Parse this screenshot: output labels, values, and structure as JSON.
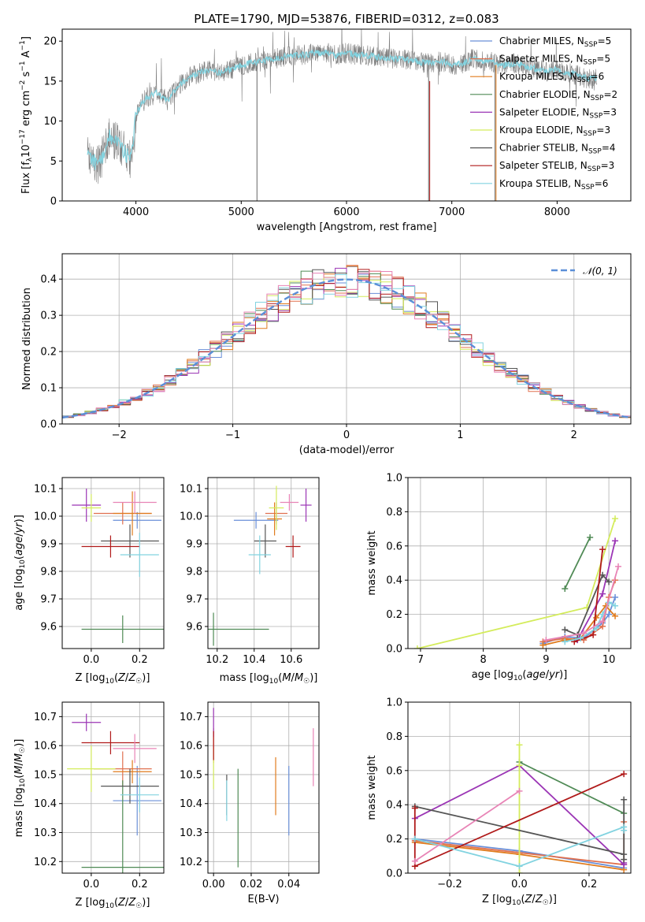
{
  "colors": {
    "chabrier_miles": "#6a8fd8",
    "salpeter_miles": "#e0704f",
    "kroupa_miles": "#e07c1e",
    "chabrier_elodie": "#4f8a55",
    "salpeter_elodie": "#9b35b5",
    "kroupa_elodie": "#d4ec5c",
    "chabrier_stelib": "#555555",
    "salpeter_stelib": "#b01a1a",
    "kroupa_stelib": "#82d3e0",
    "spectrum": "#808080",
    "normal": "#5b8fd8",
    "extra_pink": "#e884b6"
  },
  "chart_data": [
    {
      "id": "spectrum",
      "type": "line",
      "title": "PLATE=1790, MJD=53876, FIBERID=0312, z=0.083",
      "xlabel": "wavelength [Angstrom, rest frame]",
      "ylabel": "Flux [f_λ10^-17 erg cm^-2 s^-1 A^-1]",
      "xlim": [
        3300,
        8700
      ],
      "ylim": [
        0,
        21.5
      ],
      "xticks": [
        4000,
        5000,
        6000,
        7000,
        8000
      ],
      "yticks": [
        0,
        5,
        10,
        15,
        20
      ],
      "grid": false,
      "legend_position": "top-right",
      "legend": [
        "Chabrier MILES, N_SSP=5",
        "Salpeter MILES, N_SSP=5",
        "Kroupa MILES, N_SSP=6",
        "Chabrier ELODIE, N_SSP=2",
        "Salpeter ELODIE, N_SSP=3",
        "Kroupa ELODIE, N_SSP=3",
        "Chabrier STELIB, N_SSP=4",
        "Salpeter STELIB, N_SSP=3",
        "Kroupa STELIB, N_SSP=6"
      ],
      "continuum": [
        [
          3550,
          5.5
        ],
        [
          3650,
          4.5
        ],
        [
          3750,
          8
        ],
        [
          3850,
          7
        ],
        [
          3950,
          5
        ],
        [
          4000,
          11
        ],
        [
          4100,
          13
        ],
        [
          4200,
          13.5
        ],
        [
          4300,
          12.5
        ],
        [
          4400,
          14.5
        ],
        [
          4500,
          15.5
        ],
        [
          4600,
          16
        ],
        [
          4700,
          16.5
        ],
        [
          4800,
          16
        ],
        [
          4900,
          16.5
        ],
        [
          5000,
          17
        ],
        [
          5100,
          17.3
        ],
        [
          5200,
          17.5
        ],
        [
          5300,
          17.8
        ],
        [
          5400,
          18
        ],
        [
          5500,
          18.2
        ],
        [
          5600,
          18.3
        ],
        [
          5700,
          18.5
        ],
        [
          5800,
          18.6
        ],
        [
          5900,
          18.2
        ],
        [
          6000,
          18.5
        ],
        [
          6100,
          18.3
        ],
        [
          6200,
          18.2
        ],
        [
          6300,
          18
        ],
        [
          6400,
          17.8
        ],
        [
          6500,
          17.8
        ],
        [
          6600,
          17.6
        ],
        [
          6700,
          17.4
        ],
        [
          6800,
          17.2
        ],
        [
          6900,
          17.5
        ],
        [
          7000,
          17
        ],
        [
          7100,
          17.2
        ],
        [
          7200,
          17.8
        ],
        [
          7300,
          17.5
        ],
        [
          7400,
          17.3
        ],
        [
          7500,
          17
        ],
        [
          7600,
          17.2
        ],
        [
          7700,
          16.8
        ],
        [
          7800,
          16.5
        ],
        [
          7900,
          16.2
        ],
        [
          8000,
          16.5
        ],
        [
          8100,
          16
        ],
        [
          8200,
          15.7
        ],
        [
          8300,
          15.3
        ]
      ],
      "absorption_features": [
        [
          5150,
          0
        ],
        [
          6780,
          0
        ],
        [
          7410,
          0
        ]
      ]
    },
    {
      "id": "residuals",
      "type": "histogram",
      "xlabel": "(data-model)/error",
      "ylabel": "Normed distribution",
      "xlim": [
        -2.5,
        2.5
      ],
      "ylim": [
        0,
        0.47
      ],
      "xticks": [
        -2,
        -1,
        0,
        1,
        2
      ],
      "yticks": [
        0.0,
        0.1,
        0.2,
        0.3,
        0.4
      ],
      "grid": true,
      "legend_position": "top-right",
      "legend": [
        "𝒩(0, 1)"
      ],
      "bin_width": 0.1
    },
    {
      "id": "age_vs_Z",
      "type": "errorbar",
      "xlabel": "Z [log10(Z/Z☉)]",
      "ylabel": "age  [log10(age/yr)]",
      "xlim": [
        -0.12,
        0.3
      ],
      "ylim": [
        9.52,
        10.14
      ],
      "xticks": [
        0.0,
        0.2
      ],
      "yticks": [
        9.6,
        9.7,
        9.8,
        9.9,
        10.0,
        10.1
      ],
      "grid": true,
      "points": [
        {
          "series": "chabrier_miles",
          "x": 0.19,
          "xerr": 0.1,
          "y": 9.985,
          "yerr": 0.03
        },
        {
          "series": "salpeter_miles",
          "x": 0.13,
          "xerr": 0.12,
          "y": 10.01,
          "yerr": 0.04
        },
        {
          "series": "kroupa_miles",
          "x": 0.17,
          "xerr": 0.08,
          "y": 10.01,
          "yerr": 0.08
        },
        {
          "series": "chabrier_elodie",
          "x": 0.13,
          "xerr": 0.17,
          "y": 9.59,
          "yerr": 0.05
        },
        {
          "series": "salpeter_elodie",
          "x": -0.02,
          "xerr": 0.06,
          "y": 10.04,
          "yerr": 0.06
        },
        {
          "series": "kroupa_elodie",
          "x": 0.0,
          "xerr": 0.04,
          "y": 10.03,
          "yerr": 0.05
        },
        {
          "series": "chabrier_stelib",
          "x": 0.16,
          "xerr": 0.12,
          "y": 9.91,
          "yerr": 0.06
        },
        {
          "series": "salpeter_stelib",
          "x": 0.08,
          "xerr": 0.12,
          "y": 9.89,
          "yerr": 0.04
        },
        {
          "series": "kroupa_stelib",
          "x": 0.2,
          "xerr": 0.08,
          "y": 9.86,
          "yerr": 0.08
        },
        {
          "series": "extra_pink",
          "x": 0.18,
          "xerr": 0.09,
          "y": 10.05,
          "yerr": 0.04
        }
      ]
    },
    {
      "id": "age_vs_mass",
      "type": "errorbar",
      "xlabel": "mass [log10(M/M☉)]",
      "ylabel": "",
      "xlim": [
        10.15,
        10.75
      ],
      "ylim": [
        9.52,
        10.14
      ],
      "xticks": [
        10.2,
        10.4,
        10.6
      ],
      "yticks": [
        9.6,
        9.7,
        9.8,
        9.9,
        10.0,
        10.1
      ],
      "grid": true,
      "points": [
        {
          "series": "chabrier_miles",
          "x": 10.41,
          "xerr": 0.12,
          "y": 9.985,
          "yerr": 0.03
        },
        {
          "series": "salpeter_miles",
          "x": 10.52,
          "xerr": 0.06,
          "y": 10.01,
          "yerr": 0.04
        },
        {
          "series": "kroupa_miles",
          "x": 10.51,
          "xerr": 0.04,
          "y": 9.99,
          "yerr": 0.06
        },
        {
          "series": "chabrier_elodie",
          "x": 10.18,
          "xerr": 0.3,
          "y": 9.59,
          "yerr": 0.06
        },
        {
          "series": "salpeter_elodie",
          "x": 10.68,
          "xerr": 0.03,
          "y": 10.04,
          "yerr": 0.06
        },
        {
          "series": "kroupa_elodie",
          "x": 10.52,
          "xerr": 0.04,
          "y": 10.03,
          "yerr": 0.08
        },
        {
          "series": "chabrier_stelib",
          "x": 10.46,
          "xerr": 0.06,
          "y": 9.91,
          "yerr": 0.06
        },
        {
          "series": "salpeter_stelib",
          "x": 10.61,
          "xerr": 0.04,
          "y": 9.89,
          "yerr": 0.04
        },
        {
          "series": "kroupa_stelib",
          "x": 10.43,
          "xerr": 0.06,
          "y": 9.86,
          "yerr": 0.07
        },
        {
          "series": "extra_pink",
          "x": 10.59,
          "xerr": 0.05,
          "y": 10.05,
          "yerr": 0.03
        }
      ]
    },
    {
      "id": "mass_weight_vs_age",
      "type": "line",
      "xlabel": "age  [log10(age/yr)]",
      "ylabel": "mass weight",
      "xlim": [
        6.8,
        10.35
      ],
      "ylim": [
        0.0,
        1.0
      ],
      "xticks": [
        7,
        8,
        9,
        10
      ],
      "yticks": [
        0.0,
        0.2,
        0.4,
        0.6,
        0.8,
        1.0
      ],
      "grid": true,
      "series": [
        {
          "key": "chabrier_miles",
          "x": [
            8.95,
            9.3,
            9.6,
            9.9,
            10.0,
            10.1
          ],
          "y": [
            0.03,
            0.07,
            0.06,
            0.15,
            0.2,
            0.3
          ]
        },
        {
          "key": "salpeter_miles",
          "x": [
            8.95,
            9.3,
            9.6,
            9.9,
            10.0,
            10.1
          ],
          "y": [
            0.04,
            0.06,
            0.05,
            0.13,
            0.3,
            0.4
          ]
        },
        {
          "key": "kroupa_miles",
          "x": [
            8.95,
            9.3,
            9.55,
            9.8,
            9.95,
            10.1
          ],
          "y": [
            0.02,
            0.05,
            0.06,
            0.18,
            0.25,
            0.19
          ]
        },
        {
          "key": "chabrier_elodie",
          "x": [
            9.3,
            9.7
          ],
          "y": [
            0.35,
            0.65
          ]
        },
        {
          "key": "salpeter_elodie",
          "x": [
            9.5,
            9.9,
            10.1
          ],
          "y": [
            0.05,
            0.32,
            0.63
          ]
        },
        {
          "key": "kroupa_elodie",
          "x": [
            6.95,
            9.65,
            10.1
          ],
          "y": [
            0.0,
            0.24,
            0.76
          ]
        },
        {
          "key": "chabrier_stelib",
          "x": [
            9.3,
            9.5,
            9.9,
            10.0
          ],
          "y": [
            0.11,
            0.08,
            0.43,
            0.39
          ]
        },
        {
          "key": "salpeter_stelib",
          "x": [
            9.45,
            9.75,
            9.9
          ],
          "y": [
            0.04,
            0.08,
            0.58
          ]
        },
        {
          "key": "kroupa_stelib",
          "x": [
            9.3,
            9.55,
            9.8,
            9.9,
            10.0,
            10.1
          ],
          "y": [
            0.04,
            0.06,
            0.12,
            0.2,
            0.27,
            0.25
          ]
        },
        {
          "key": "extra_pink",
          "x": [
            9.0,
            9.6,
            9.9,
            10.15
          ],
          "y": [
            0.05,
            0.09,
            0.16,
            0.48
          ]
        }
      ]
    },
    {
      "id": "mass_vs_Z",
      "type": "errorbar",
      "xlabel": "Z [log10(Z/Z☉)]",
      "ylabel": "mass [log10(M/M☉)]",
      "xlim": [
        -0.12,
        0.3
      ],
      "ylim": [
        10.16,
        10.75
      ],
      "xticks": [
        0.0,
        0.2
      ],
      "yticks": [
        10.2,
        10.3,
        10.4,
        10.5,
        10.6,
        10.7
      ],
      "grid": true,
      "points": [
        {
          "series": "chabrier_miles",
          "x": 0.19,
          "xerr": 0.1,
          "y": 10.41,
          "yerr": 0.12
        },
        {
          "series": "salpeter_miles",
          "x": 0.13,
          "xerr": 0.12,
          "y": 10.52,
          "yerr": 0.06
        },
        {
          "series": "kroupa_miles",
          "x": 0.17,
          "xerr": 0.08,
          "y": 10.51,
          "yerr": 0.04
        },
        {
          "series": "chabrier_elodie",
          "x": 0.13,
          "xerr": 0.17,
          "y": 10.18,
          "yerr": 0.3
        },
        {
          "series": "salpeter_elodie",
          "x": -0.02,
          "xerr": 0.06,
          "y": 10.68,
          "yerr": 0.03
        },
        {
          "series": "kroupa_elodie",
          "x": 0.0,
          "xerr": 0.1,
          "y": 10.52,
          "yerr": 0.08
        },
        {
          "series": "chabrier_stelib",
          "x": 0.16,
          "xerr": 0.12,
          "y": 10.46,
          "yerr": 0.06
        },
        {
          "series": "salpeter_stelib",
          "x": 0.08,
          "xerr": 0.12,
          "y": 10.61,
          "yerr": 0.04
        },
        {
          "series": "kroupa_stelib",
          "x": 0.2,
          "xerr": 0.08,
          "y": 10.43,
          "yerr": 0.06
        },
        {
          "series": "extra_pink",
          "x": 0.18,
          "xerr": 0.09,
          "y": 10.59,
          "yerr": 0.05
        }
      ]
    },
    {
      "id": "mass_vs_ebv",
      "type": "errorbar",
      "xlabel": "E(B-V)",
      "ylabel": "",
      "xlim": [
        -0.003,
        0.056
      ],
      "ylim": [
        10.16,
        10.75
      ],
      "xticks": [
        0.0,
        0.02,
        0.04
      ],
      "yticks": [
        10.2,
        10.3,
        10.4,
        10.5,
        10.6,
        10.7
      ],
      "grid": true,
      "points": [
        {
          "series": "chabrier_miles",
          "x": 0.04,
          "xerr": 0,
          "y": 10.41,
          "yerr": 0.12
        },
        {
          "series": "salpeter_miles",
          "x": 0.0,
          "xerr": 0,
          "y": 10.6,
          "yerr": 0.06
        },
        {
          "series": "kroupa_miles",
          "x": 0.033,
          "xerr": 0,
          "y": 10.46,
          "yerr": 0.1
        },
        {
          "series": "chabrier_elodie",
          "x": 0.013,
          "xerr": 0,
          "y": 10.35,
          "yerr": 0.17
        },
        {
          "series": "salpeter_elodie",
          "x": 0.0,
          "xerr": 0,
          "y": 10.68,
          "yerr": 0.05
        },
        {
          "series": "kroupa_elodie",
          "x": 0.0,
          "xerr": 0,
          "y": 10.52,
          "yerr": 0.07
        },
        {
          "series": "chabrier_stelib",
          "x": 0.007,
          "xerr": 0,
          "y": 10.43,
          "yerr": 0.07
        },
        {
          "series": "salpeter_stelib",
          "x": 0.0,
          "xerr": 0,
          "y": 10.6,
          "yerr": 0.05
        },
        {
          "series": "kroupa_stelib",
          "x": 0.007,
          "xerr": 0,
          "y": 10.41,
          "yerr": 0.07
        },
        {
          "series": "extra_pink",
          "x": 0.053,
          "xerr": 0,
          "y": 10.56,
          "yerr": 0.1
        }
      ]
    },
    {
      "id": "mass_weight_vs_Z",
      "type": "line",
      "xlabel": "Z [log10(Z/Z☉)]",
      "ylabel": "mass weight",
      "xlim": [
        -0.32,
        0.32
      ],
      "ylim": [
        0.0,
        1.0
      ],
      "xticks": [
        -0.2,
        0.0,
        0.2
      ],
      "yticks": [
        0.0,
        0.2,
        0.4,
        0.6,
        0.8,
        1.0
      ],
      "grid": true,
      "series": [
        {
          "key": "chabrier_miles",
          "x": [
            -0.3,
            0.0,
            0.3
          ],
          "y": [
            0.2,
            0.13,
            0.03
          ]
        },
        {
          "key": "salpeter_miles",
          "x": [
            -0.3,
            0.3,
            0.3
          ],
          "y": [
            0.19,
            0.05,
            0.3
          ]
        },
        {
          "key": "kroupa_miles",
          "x": [
            -0.3,
            0.0,
            0.3
          ],
          "y": [
            0.18,
            0.11,
            0.02
          ]
        },
        {
          "key": "chabrier_elodie",
          "x": [
            0.0,
            0.3
          ],
          "y": [
            0.65,
            0.35
          ]
        },
        {
          "key": "salpeter_elodie",
          "x": [
            -0.3,
            0.0,
            0.3,
            0.3
          ],
          "y": [
            0.32,
            0.63,
            0.05,
            0.06
          ]
        },
        {
          "key": "kroupa_elodie",
          "x": [
            0.0,
            0.0,
            0.0
          ],
          "y": [
            0.75,
            0.63,
            0.0
          ]
        },
        {
          "key": "chabrier_stelib",
          "x": [
            -0.3,
            0.3,
            0.3,
            0.3
          ],
          "y": [
            0.39,
            0.11,
            0.43,
            0.08
          ]
        },
        {
          "key": "salpeter_stelib",
          "x": [
            -0.3,
            -0.3,
            0.3
          ],
          "y": [
            0.38,
            0.04,
            0.58
          ]
        },
        {
          "key": "kroupa_stelib",
          "x": [
            -0.3,
            0.0,
            0.3,
            0.3
          ],
          "y": [
            0.2,
            0.04,
            0.27,
            0.25
          ]
        },
        {
          "key": "extra_pink",
          "x": [
            -0.3,
            0.0
          ],
          "y": [
            0.07,
            0.48
          ]
        }
      ]
    }
  ]
}
